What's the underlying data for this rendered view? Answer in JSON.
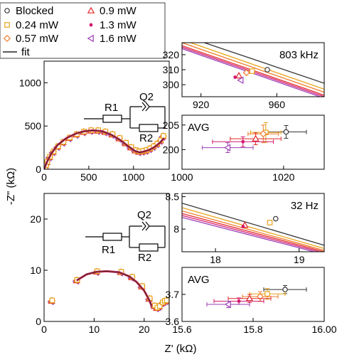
{
  "colors": {
    "blocked": "#333333",
    "p024": "#e8a317",
    "p057": "#f07c2a",
    "p09": "#e0282a",
    "p13": "#d4186f",
    "p16": "#9b3fb5",
    "fit": "#222222"
  },
  "legend": {
    "items": [
      {
        "label": "Blocked",
        "marker": "circle",
        "color": "#333333"
      },
      {
        "label": "0.9 mW",
        "marker": "triangle",
        "color": "#e0282a"
      },
      {
        "label": "0.24 mW",
        "marker": "square",
        "color": "#e8a317"
      },
      {
        "label": "1.3 mW",
        "marker": "dot",
        "color": "#d4186f"
      },
      {
        "label": "0.57 mW",
        "marker": "diamond",
        "color": "#f07c2a"
      },
      {
        "label": "1.6 mW",
        "marker": "tri-left",
        "color": "#9b3fb5"
      },
      {
        "label": "fit",
        "marker": "line",
        "color": "#222222"
      }
    ]
  },
  "axes": {
    "xlabel": "Z' (kΩ)",
    "ylabel": "-Z\" (kΩ)"
  },
  "circuit": {
    "r1": "R1",
    "q2": "Q2",
    "r2": "R2"
  },
  "chart_data": [
    {
      "id": "top-nyquist",
      "type": "scatter",
      "xlim": [
        0,
        1400
      ],
      "ylim": [
        0,
        1250
      ],
      "xticks": [
        0,
        500,
        1000
      ],
      "yticks": [
        0,
        500,
        1000
      ],
      "series": [
        {
          "name": "0.9 mW",
          "x": [
            5,
            15,
            30,
            60,
            100,
            150,
            210,
            280,
            360,
            440,
            520,
            600,
            680,
            760,
            840,
            910,
            970,
            1020,
            1060,
            1100,
            1140,
            1180,
            1220,
            1260,
            1300,
            1330
          ],
          "y": [
            10,
            40,
            80,
            140,
            200,
            260,
            310,
            360,
            400,
            430,
            445,
            445,
            430,
            400,
            355,
            300,
            250,
            215,
            200,
            205,
            215,
            235,
            260,
            290,
            330,
            380
          ]
        }
      ],
      "fit": {
        "x": [
          0,
          30,
          80,
          150,
          250,
          350,
          450,
          550,
          650,
          750,
          850,
          950,
          1020,
          1070,
          1120,
          1180,
          1240,
          1300,
          1340
        ],
        "y": [
          0,
          80,
          180,
          280,
          360,
          410,
          440,
          450,
          440,
          400,
          340,
          260,
          210,
          195,
          205,
          225,
          260,
          310,
          360
        ]
      }
    },
    {
      "id": "top-zoom-803k",
      "type": "line",
      "annotation": "803 kHz",
      "xlim": [
        910,
        985
      ],
      "ylim": [
        292,
        328
      ],
      "xticks": [
        920,
        960
      ],
      "yticks": [
        300,
        310,
        320
      ],
      "series": [
        {
          "name": "Blocked",
          "x": [
            910,
            985
          ],
          "y": [
            333,
            301
          ]
        },
        {
          "name": "0.24 mW",
          "x": [
            910,
            985
          ],
          "y": [
            330,
            297
          ]
        },
        {
          "name": "0.57 mW",
          "x": [
            910,
            985
          ],
          "y": [
            328,
            295
          ]
        },
        {
          "name": "0.9 mW",
          "x": [
            910,
            985
          ],
          "y": [
            326,
            293
          ]
        },
        {
          "name": "1.3 mW",
          "x": [
            910,
            985
          ],
          "y": [
            325,
            292
          ]
        },
        {
          "name": "1.6 mW",
          "x": [
            910,
            985
          ],
          "y": [
            324,
            291
          ]
        }
      ],
      "points": [
        {
          "name": "Blocked",
          "x": 955,
          "y": 310
        },
        {
          "name": "0.24 mW",
          "x": 947,
          "y": 309
        },
        {
          "name": "0.57 mW",
          "x": 944,
          "y": 308
        },
        {
          "name": "0.9 mW",
          "x": 940,
          "y": 306
        },
        {
          "name": "1.3 mW",
          "x": 938,
          "y": 305
        },
        {
          "name": "1.6 mW",
          "x": 941,
          "y": 303
        }
      ]
    },
    {
      "id": "top-avg",
      "type": "scatter",
      "annotation": "AVG",
      "xlim": [
        1000,
        1028
      ],
      "ylim": [
        196,
        207
      ],
      "xticks": [
        1000,
        1020
      ],
      "yticks": [
        200,
        205
      ],
      "points": [
        {
          "name": "Blocked",
          "x": 1020.5,
          "y": 203.6,
          "xerr": 4,
          "yerr": 1.3
        },
        {
          "name": "0.24 mW",
          "x": 1016.5,
          "y": 203.5,
          "xerr": 3,
          "yerr": 2.0
        },
        {
          "name": "0.57 mW",
          "x": 1016.0,
          "y": 203.2,
          "xerr": 3,
          "yerr": 1.8
        },
        {
          "name": "0.9 mW",
          "x": 1014.5,
          "y": 202.2,
          "xerr": 5,
          "yerr": 1.2
        },
        {
          "name": "1.3 mW",
          "x": 1012.0,
          "y": 201.6,
          "xerr": 6,
          "yerr": 1.0
        },
        {
          "name": "1.6 mW",
          "x": 1009.0,
          "y": 200.4,
          "xerr": 5,
          "yerr": 1.0
        }
      ]
    },
    {
      "id": "bottom-nyquist",
      "type": "scatter",
      "xlim": [
        0,
        25
      ],
      "ylim": [
        0,
        25
      ],
      "xticks": [
        0,
        10,
        20
      ],
      "yticks": [
        0,
        10,
        20
      ],
      "series": [
        {
          "name": "0.9 mW",
          "x": [
            1.5,
            6.5,
            10.5,
            15.3,
            17.5,
            19.5,
            21.0,
            22.0,
            22.5,
            23.0,
            23.6,
            24.0,
            24.4
          ],
          "y": [
            4.0,
            8.0,
            9.7,
            9.6,
            8.6,
            6.8,
            4.4,
            3.0,
            2.6,
            2.9,
            3.6,
            3.9,
            4.0
          ]
        }
      ],
      "fit": {
        "x": [
          6.5,
          8.5,
          10.5,
          12.5,
          15.0,
          17.0,
          18.5,
          20.0,
          21.0,
          21.5
        ],
        "y": [
          8.0,
          9.2,
          9.7,
          9.8,
          9.6,
          8.8,
          7.7,
          6.0,
          4.2,
          3.0
        ]
      }
    },
    {
      "id": "bottom-zoom-32",
      "type": "line",
      "annotation": "32 Hz",
      "xlim": [
        17.6,
        19.3
      ],
      "ylim": [
        7.65,
        8.55
      ],
      "xticks": [
        18,
        19
      ],
      "yticks": [
        8.0,
        8.5
      ],
      "series": [
        {
          "name": "Blocked",
          "x": [
            17.6,
            19.3
          ],
          "y": [
            8.4,
            7.75
          ]
        },
        {
          "name": "0.24 mW",
          "x": [
            17.6,
            19.3
          ],
          "y": [
            8.33,
            7.7
          ]
        },
        {
          "name": "0.57 mW",
          "x": [
            17.6,
            19.3
          ],
          "y": [
            8.28,
            7.67
          ]
        },
        {
          "name": "0.9 mW",
          "x": [
            17.6,
            19.3
          ],
          "y": [
            8.24,
            7.65
          ]
        },
        {
          "name": "1.3 mW",
          "x": [
            17.6,
            19.3
          ],
          "y": [
            8.21,
            7.63
          ]
        },
        {
          "name": "1.6 mW",
          "x": [
            17.6,
            19.3
          ],
          "y": [
            8.18,
            7.61
          ]
        }
      ],
      "points": [
        {
          "name": "Blocked",
          "x": 18.72,
          "y": 8.16
        },
        {
          "name": "0.24 mW",
          "x": 18.65,
          "y": 8.1
        },
        {
          "name": "0.9 mW",
          "x": 18.35,
          "y": 8.06
        },
        {
          "name": "1.3 mW",
          "x": 18.33,
          "y": 8.04
        }
      ]
    },
    {
      "id": "bottom-avg",
      "type": "scatter",
      "annotation": "AVG",
      "xlim": [
        15.6,
        16.0
      ],
      "ylim": [
        3.6,
        3.8
      ],
      "xticks": [
        15.6,
        15.8,
        16.0
      ],
      "xticklabels": [
        "15.6",
        "15.8",
        "16.00"
      ],
      "yticks": [
        3.6,
        3.7
      ],
      "points": [
        {
          "name": "Blocked",
          "x": 15.89,
          "y": 3.718,
          "xerr": 0.06,
          "yerr": 0.015
        },
        {
          "name": "0.24 mW",
          "x": 15.84,
          "y": 3.702,
          "xerr": 0.05,
          "yerr": 0.02
        },
        {
          "name": "0.57 mW",
          "x": 15.82,
          "y": 3.692,
          "xerr": 0.05,
          "yerr": 0.018
        },
        {
          "name": "0.9 mW",
          "x": 15.79,
          "y": 3.685,
          "xerr": 0.06,
          "yerr": 0.015
        },
        {
          "name": "1.3 mW",
          "x": 15.76,
          "y": 3.675,
          "xerr": 0.07,
          "yerr": 0.012
        },
        {
          "name": "1.6 mW",
          "x": 15.73,
          "y": 3.663,
          "xerr": 0.06,
          "yerr": 0.012
        }
      ]
    }
  ]
}
